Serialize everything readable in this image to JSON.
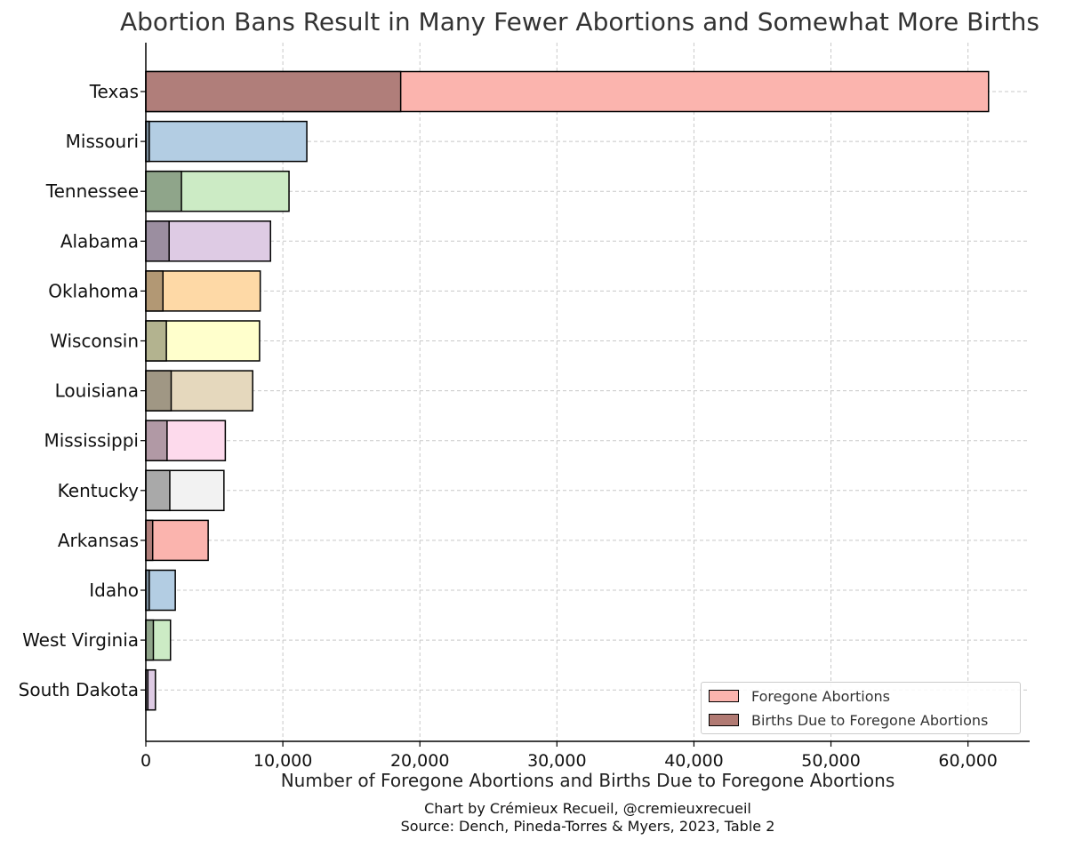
{
  "chart_data": {
    "type": "bar",
    "orientation": "horizontal",
    "stacked": "overlay",
    "title": "Abortion Bans Result in Many Fewer Abortions and Somewhat More Births",
    "xlabel": "Number of Foregone Abortions and Births Due to Foregone Abortions",
    "ylabel": "",
    "xlim": [
      0,
      64500
    ],
    "x_ticks": [
      0,
      10000,
      20000,
      30000,
      40000,
      50000,
      60000
    ],
    "x_tick_labels": [
      "0",
      "10,000",
      "20,000",
      "30,000",
      "40,000",
      "50,000",
      "60,000"
    ],
    "grid": true,
    "legend_placement": "bottom-right",
    "categories": [
      "Texas",
      "Missouri",
      "Tennessee",
      "Alabama",
      "Oklahoma",
      "Wisconsin",
      "Louisiana",
      "Mississippi",
      "Kentucky",
      "Arkansas",
      "Idaho",
      "West Virginia",
      "South Dakota"
    ],
    "colors": [
      "#fbb4ae",
      "#b3cde3",
      "#ccebc5",
      "#decbe4",
      "#fed9a6",
      "#ffffcc",
      "#e5d8bd",
      "#fddaec",
      "#f2f2f2",
      "#fbb4ae",
      "#b3cde3",
      "#ccebc5",
      "#decbe4"
    ],
    "series": [
      {
        "name": "Foregone Abortions",
        "values": [
          61500,
          11750,
          10450,
          9100,
          8350,
          8300,
          7800,
          5800,
          5700,
          4550,
          2150,
          1800,
          700
        ]
      },
      {
        "name": "Births Due to Foregone Abortions",
        "values": [
          18600,
          250,
          2600,
          1700,
          1250,
          1500,
          1850,
          1550,
          1750,
          500,
          250,
          550,
          150
        ]
      }
    ],
    "legend_colors": [
      "#fbb4ae",
      "#b17a73"
    ]
  },
  "caption_lines": [
    "Chart by Crémieux Recueil, @cremieuxrecueil",
    "Source: Dench, Pineda-Torres & Myers, 2023, Table 2"
  ]
}
